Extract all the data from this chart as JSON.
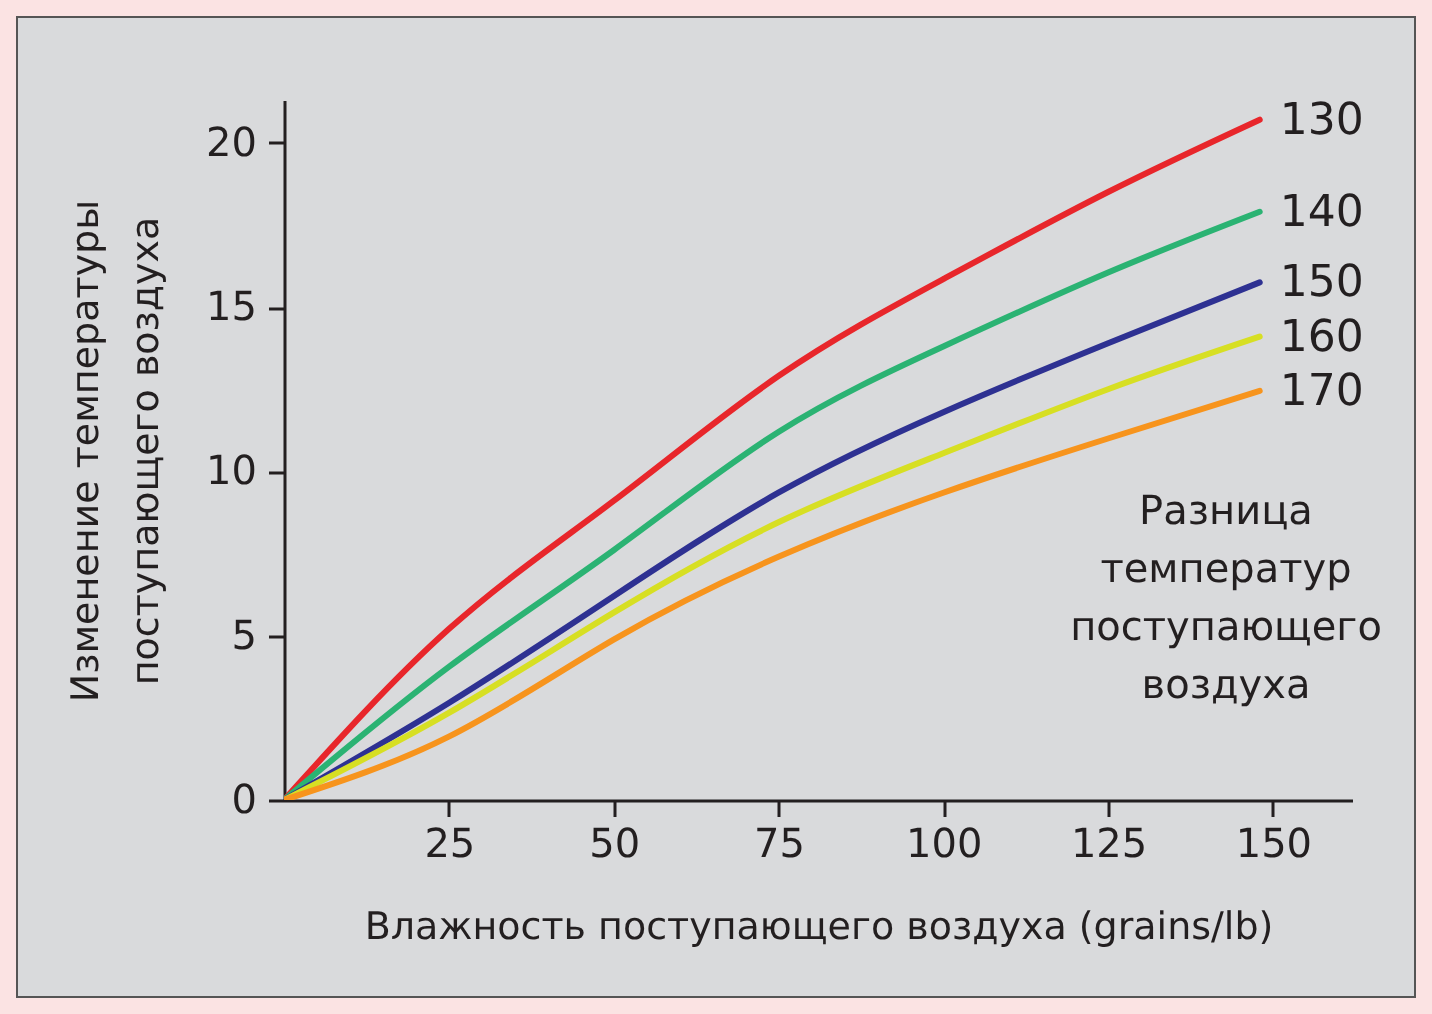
{
  "chart_data": {
    "type": "line",
    "xlabel": "Влажность поступающего воздуха (grains/lb)",
    "ylabel": "Изменение температуры поступающего воздуха",
    "legend_title": "Разница температур поступающего воздуха",
    "x": [
      0,
      25,
      50,
      75,
      100,
      125,
      148
    ],
    "xlim": [
      0,
      162
    ],
    "xticks": [
      25,
      50,
      75,
      100,
      125,
      150
    ],
    "ylim": [
      0,
      21.3
    ],
    "yticks": [
      0,
      5,
      10,
      15,
      20
    ],
    "series": [
      {
        "name": "130",
        "color": "#e8262b",
        "values": [
          0,
          5.2,
          9.1,
          12.9,
          15.85,
          18.5,
          20.7
        ]
      },
      {
        "name": "140",
        "color": "#2bb373",
        "values": [
          0,
          4.05,
          7.6,
          11.2,
          13.8,
          16.05,
          17.9
        ]
      },
      {
        "name": "150",
        "color": "#2e3192",
        "values": [
          0,
          2.95,
          6.2,
          9.35,
          11.8,
          13.9,
          15.75
        ]
      },
      {
        "name": "160",
        "color": "#d7df23",
        "values": [
          0,
          2.65,
          5.7,
          8.45,
          10.55,
          12.5,
          14.1
        ]
      },
      {
        "name": "170",
        "color": "#f7941d",
        "values": [
          0,
          1.93,
          4.88,
          7.4,
          9.35,
          11.0,
          12.45
        ]
      }
    ]
  }
}
